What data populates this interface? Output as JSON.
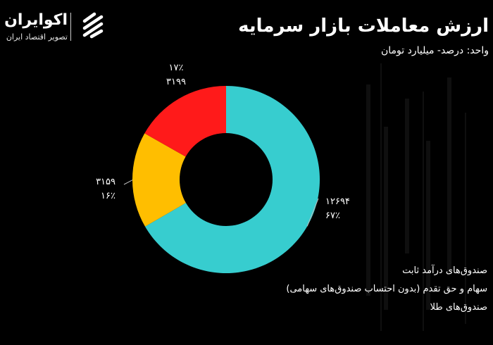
{
  "brand": {
    "name": "اکوایران",
    "tagline": "تصویر اقتصاد ایران"
  },
  "title": "ارزش معاملات بازار سرمایه",
  "subtitle": "واحد: درصد- میلیارد تومان",
  "colors": {
    "background": "#000000",
    "text": "#ffffff",
    "fixed_income": "#37CDCF",
    "equity": "#FFBE00",
    "gold": "#FF1A1A"
  },
  "chart_data": {
    "type": "pie",
    "donut": true,
    "slices": [
      {
        "name": "صندوق‌های درآمد ثابت",
        "value": 12694,
        "value_label": "۱۲۶۹۴",
        "percent_label": "۶۷٪",
        "color": "#37CDCF"
      },
      {
        "name": "سهام و حق تقدم (بدون احتساب صندوق‌های سهامی)",
        "value": 3159,
        "value_label": "۳۱۵۹",
        "percent_label": "۱۶٪",
        "color": "#FFBE00"
      },
      {
        "name": "صندوق‌های طلا",
        "value": 3199,
        "value_label": "۳۱۹۹",
        "percent_label": "۱۷٪",
        "color": "#FF1A1A"
      }
    ],
    "legend_position": "bottom-right"
  }
}
